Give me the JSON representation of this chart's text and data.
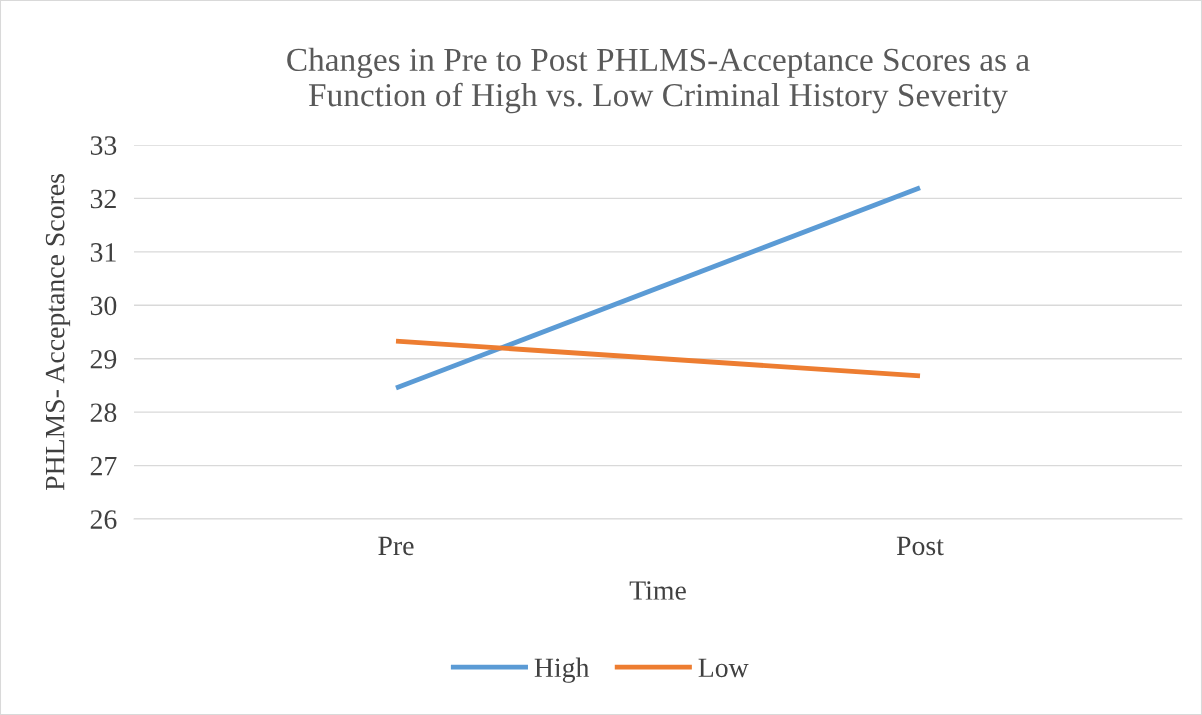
{
  "chart_data": {
    "type": "line",
    "title": "Changes in Pre to Post PHLMS-Acceptance Scores as a\nFunction of High vs. Low Criminal History Severity",
    "xlabel": "Time",
    "ylabel": "PHLMS- Acceptance Scores",
    "categories": [
      "Pre",
      "Post"
    ],
    "series": [
      {
        "name": "High",
        "color": "#5b9bd5",
        "values": [
          28.45,
          32.2
        ]
      },
      {
        "name": "Low",
        "color": "#ed7d31",
        "values": [
          29.33,
          28.68
        ]
      }
    ],
    "ylim": [
      26,
      33
    ],
    "yticks": [
      26,
      27,
      28,
      29,
      30,
      31,
      32,
      33
    ],
    "grid": "y",
    "legend": "bottom",
    "marker": "none",
    "line_style": "solid"
  }
}
